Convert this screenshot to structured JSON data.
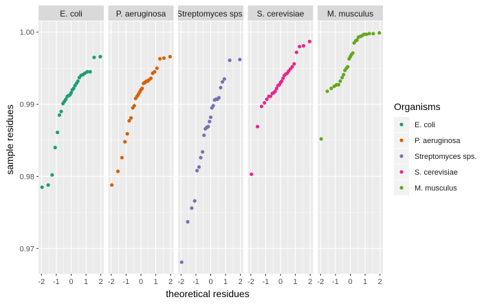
{
  "chart_data": {
    "type": "scatter",
    "xlabel": "theoretical residues",
    "ylabel": "sample residues",
    "xlim": [
      -2.2,
      2.2
    ],
    "ylim": [
      0.9665,
      1.0015
    ],
    "x_ticks": [
      "-2",
      "-1",
      "0",
      "1",
      "2"
    ],
    "x_tick_values": [
      -2,
      -1,
      0,
      1,
      2
    ],
    "y_ticks": [
      "0.97",
      "0.98",
      "0.99",
      "1.00"
    ],
    "y_tick_values": [
      0.97,
      0.98,
      0.99,
      1.0
    ],
    "grid": true,
    "legend": {
      "title": "Organisms",
      "position": "right"
    },
    "panels": [
      {
        "name": "E. coli",
        "color": "#1B9E77",
        "points": [
          {
            "x": -1.96,
            "y": 0.9785
          },
          {
            "x": -1.55,
            "y": 0.9788
          },
          {
            "x": -1.28,
            "y": 0.9802
          },
          {
            "x": -1.08,
            "y": 0.984
          },
          {
            "x": -0.92,
            "y": 0.9861
          },
          {
            "x": -0.79,
            "y": 0.9885
          },
          {
            "x": -0.67,
            "y": 0.989
          },
          {
            "x": -0.55,
            "y": 0.9901
          },
          {
            "x": -0.45,
            "y": 0.9904
          },
          {
            "x": -0.36,
            "y": 0.9907
          },
          {
            "x": -0.26,
            "y": 0.9911
          },
          {
            "x": -0.17,
            "y": 0.9912
          },
          {
            "x": -0.08,
            "y": 0.9913
          },
          {
            "x": 0.0,
            "y": 0.9916
          },
          {
            "x": 0.08,
            "y": 0.992
          },
          {
            "x": 0.17,
            "y": 0.9922
          },
          {
            "x": 0.26,
            "y": 0.9926
          },
          {
            "x": 0.36,
            "y": 0.9929
          },
          {
            "x": 0.45,
            "y": 0.9932
          },
          {
            "x": 0.55,
            "y": 0.9937
          },
          {
            "x": 0.67,
            "y": 0.994
          },
          {
            "x": 0.79,
            "y": 0.9941
          },
          {
            "x": 0.92,
            "y": 0.9943
          },
          {
            "x": 1.08,
            "y": 0.9945
          },
          {
            "x": 1.28,
            "y": 0.9945
          },
          {
            "x": 1.55,
            "y": 0.9965
          },
          {
            "x": 1.96,
            "y": 0.9966
          }
        ]
      },
      {
        "name": "P. aeruginosa",
        "color": "#D95F02",
        "points": [
          {
            "x": -1.96,
            "y": 0.9788
          },
          {
            "x": -1.55,
            "y": 0.9807
          },
          {
            "x": -1.28,
            "y": 0.9826
          },
          {
            "x": -1.08,
            "y": 0.9848
          },
          {
            "x": -0.92,
            "y": 0.9859
          },
          {
            "x": -0.79,
            "y": 0.9877
          },
          {
            "x": -0.67,
            "y": 0.9881
          },
          {
            "x": -0.55,
            "y": 0.9895
          },
          {
            "x": -0.45,
            "y": 0.9898
          },
          {
            "x": -0.36,
            "y": 0.9908
          },
          {
            "x": -0.26,
            "y": 0.9911
          },
          {
            "x": -0.17,
            "y": 0.9914
          },
          {
            "x": -0.08,
            "y": 0.9917
          },
          {
            "x": 0.0,
            "y": 0.992
          },
          {
            "x": 0.08,
            "y": 0.9922
          },
          {
            "x": 0.17,
            "y": 0.9929
          },
          {
            "x": 0.26,
            "y": 0.993
          },
          {
            "x": 0.36,
            "y": 0.9932
          },
          {
            "x": 0.45,
            "y": 0.9932
          },
          {
            "x": 0.55,
            "y": 0.9934
          },
          {
            "x": 0.67,
            "y": 0.9936
          },
          {
            "x": 0.79,
            "y": 0.9943
          },
          {
            "x": 0.92,
            "y": 0.9945
          },
          {
            "x": 1.08,
            "y": 0.995
          },
          {
            "x": 1.28,
            "y": 0.9963
          },
          {
            "x": 1.55,
            "y": 0.9964
          },
          {
            "x": 1.96,
            "y": 0.9966
          }
        ]
      },
      {
        "name": "Streptomyces sps.",
        "color": "#7570B3",
        "points": [
          {
            "x": -1.96,
            "y": 0.9681
          },
          {
            "x": -1.55,
            "y": 0.9737
          },
          {
            "x": -1.28,
            "y": 0.9756
          },
          {
            "x": -1.08,
            "y": 0.9766
          },
          {
            "x": -0.92,
            "y": 0.9808
          },
          {
            "x": -0.79,
            "y": 0.9813
          },
          {
            "x": -0.67,
            "y": 0.9826
          },
          {
            "x": -0.55,
            "y": 0.9834
          },
          {
            "x": -0.45,
            "y": 0.9857
          },
          {
            "x": -0.36,
            "y": 0.9866
          },
          {
            "x": -0.26,
            "y": 0.9868
          },
          {
            "x": -0.17,
            "y": 0.9869
          },
          {
            "x": -0.08,
            "y": 0.9876
          },
          {
            "x": 0.0,
            "y": 0.9882
          },
          {
            "x": 0.08,
            "y": 0.9895
          },
          {
            "x": 0.17,
            "y": 0.9898
          },
          {
            "x": 0.26,
            "y": 0.9906
          },
          {
            "x": 0.36,
            "y": 0.9907
          },
          {
            "x": 0.45,
            "y": 0.9907
          },
          {
            "x": 0.55,
            "y": 0.9909
          },
          {
            "x": 0.67,
            "y": 0.9923
          },
          {
            "x": 0.79,
            "y": 0.9931
          },
          {
            "x": 0.92,
            "y": 0.9935
          },
          {
            "x": 1.28,
            "y": 0.9961
          },
          {
            "x": 1.96,
            "y": 0.9962
          }
        ]
      },
      {
        "name": "S. cerevisiae",
        "color": "#E7298A",
        "points": [
          {
            "x": -1.96,
            "y": 0.9803
          },
          {
            "x": -1.55,
            "y": 0.9869
          },
          {
            "x": -1.28,
            "y": 0.9897
          },
          {
            "x": -1.08,
            "y": 0.9902
          },
          {
            "x": -0.92,
            "y": 0.9907
          },
          {
            "x": -0.79,
            "y": 0.9911
          },
          {
            "x": -0.67,
            "y": 0.9911
          },
          {
            "x": -0.55,
            "y": 0.9915
          },
          {
            "x": -0.45,
            "y": 0.9916
          },
          {
            "x": -0.36,
            "y": 0.9918
          },
          {
            "x": -0.26,
            "y": 0.9922
          },
          {
            "x": -0.17,
            "y": 0.9926
          },
          {
            "x": -0.08,
            "y": 0.9927
          },
          {
            "x": 0.0,
            "y": 0.993
          },
          {
            "x": 0.08,
            "y": 0.9932
          },
          {
            "x": 0.17,
            "y": 0.9936
          },
          {
            "x": 0.26,
            "y": 0.994
          },
          {
            "x": 0.36,
            "y": 0.9942
          },
          {
            "x": 0.45,
            "y": 0.9943
          },
          {
            "x": 0.55,
            "y": 0.9946
          },
          {
            "x": 0.67,
            "y": 0.9949
          },
          {
            "x": 0.79,
            "y": 0.9952
          },
          {
            "x": 0.92,
            "y": 0.9956
          },
          {
            "x": 1.08,
            "y": 0.9972
          },
          {
            "x": 1.28,
            "y": 0.998
          },
          {
            "x": 1.55,
            "y": 0.9981
          },
          {
            "x": 1.96,
            "y": 0.9987
          }
        ]
      },
      {
        "name": "M. musculus",
        "color": "#66A61E",
        "points": [
          {
            "x": -1.96,
            "y": 0.9852
          },
          {
            "x": -1.55,
            "y": 0.9918
          },
          {
            "x": -1.28,
            "y": 0.9922
          },
          {
            "x": -1.08,
            "y": 0.9925
          },
          {
            "x": -0.92,
            "y": 0.9927
          },
          {
            "x": -0.79,
            "y": 0.9927
          },
          {
            "x": -0.67,
            "y": 0.9932
          },
          {
            "x": -0.55,
            "y": 0.9937
          },
          {
            "x": -0.45,
            "y": 0.9941
          },
          {
            "x": -0.36,
            "y": 0.9947
          },
          {
            "x": -0.26,
            "y": 0.995
          },
          {
            "x": -0.17,
            "y": 0.9952
          },
          {
            "x": -0.08,
            "y": 0.9963
          },
          {
            "x": 0.0,
            "y": 0.9966
          },
          {
            "x": 0.08,
            "y": 0.9969
          },
          {
            "x": 0.17,
            "y": 0.9971
          },
          {
            "x": 0.26,
            "y": 0.9985
          },
          {
            "x": 0.36,
            "y": 0.9988
          },
          {
            "x": 0.45,
            "y": 0.9989
          },
          {
            "x": 0.55,
            "y": 0.9993
          },
          {
            "x": 0.67,
            "y": 0.9994
          },
          {
            "x": 0.79,
            "y": 0.9995
          },
          {
            "x": 0.92,
            "y": 0.9997
          },
          {
            "x": 1.08,
            "y": 0.9997
          },
          {
            "x": 1.28,
            "y": 0.9998
          },
          {
            "x": 1.55,
            "y": 0.9998
          },
          {
            "x": 1.96,
            "y": 0.9999
          }
        ]
      }
    ]
  },
  "colors": {
    "panel_bg": "#EBEBEB",
    "strip_bg": "#D9D9D9",
    "grid": "#FFFFFF",
    "text": "#1A1A1A",
    "tick_text": "#4D4D4D"
  }
}
